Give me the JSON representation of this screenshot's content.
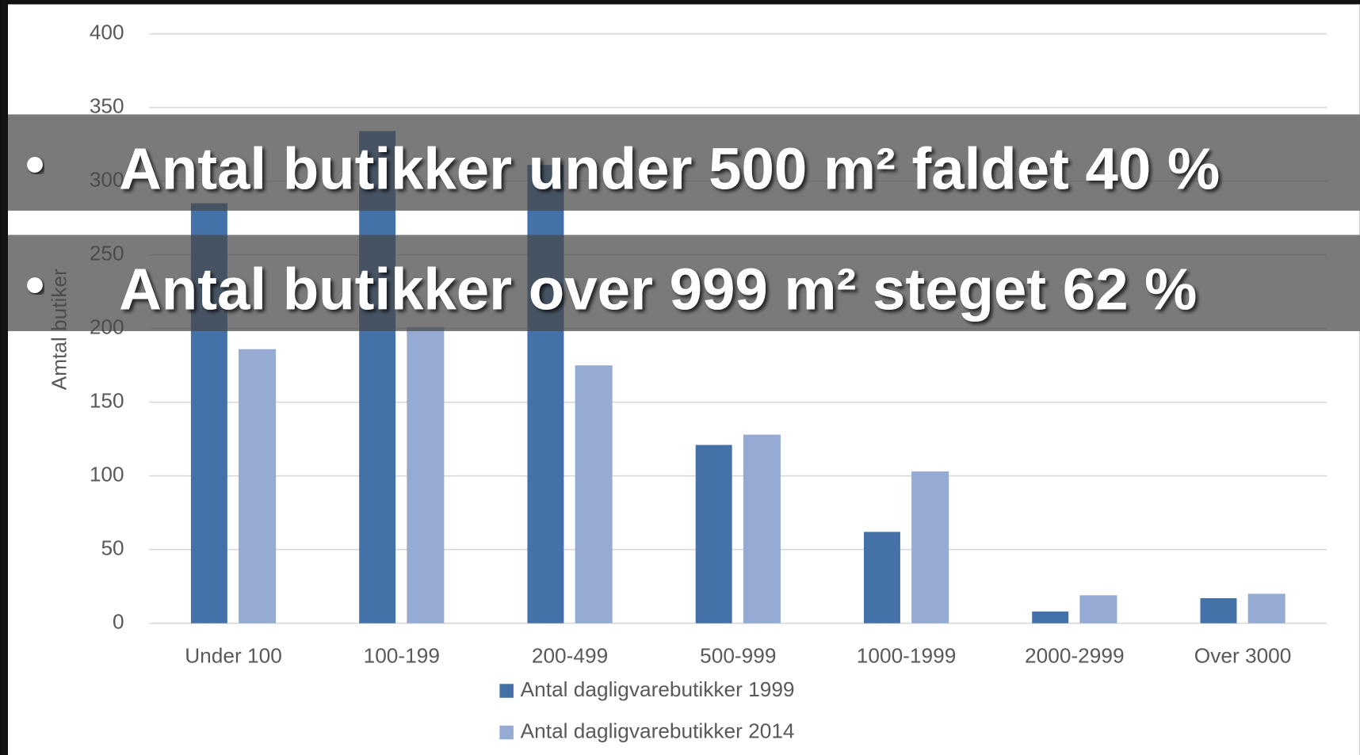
{
  "chart_data": {
    "type": "bar",
    "y_label": "Amtal butiker",
    "categories": [
      "Under 100",
      "100-199",
      "200-499",
      "500-999",
      "1000-1999",
      "2000-2999",
      "Over 3000"
    ],
    "series": [
      {
        "name": "Antal dagligvarebutikker 1999",
        "color": "#4472a8",
        "values": [
          285,
          334,
          311,
          121,
          62,
          8,
          17
        ]
      },
      {
        "name": "Antal dagligvarebutikker 2014",
        "color": "#95abd3",
        "values": [
          186,
          201,
          175,
          128,
          103,
          19,
          20
        ]
      }
    ],
    "ylim": [
      0,
      400
    ],
    "yticks": [
      0,
      50,
      100,
      150,
      200,
      250,
      300,
      350,
      400
    ],
    "grid": true,
    "annotations": [
      "Antal butikker under 500 m² faldet 40 %",
      "Antal butikker over 999 m² steget 62 %"
    ]
  }
}
